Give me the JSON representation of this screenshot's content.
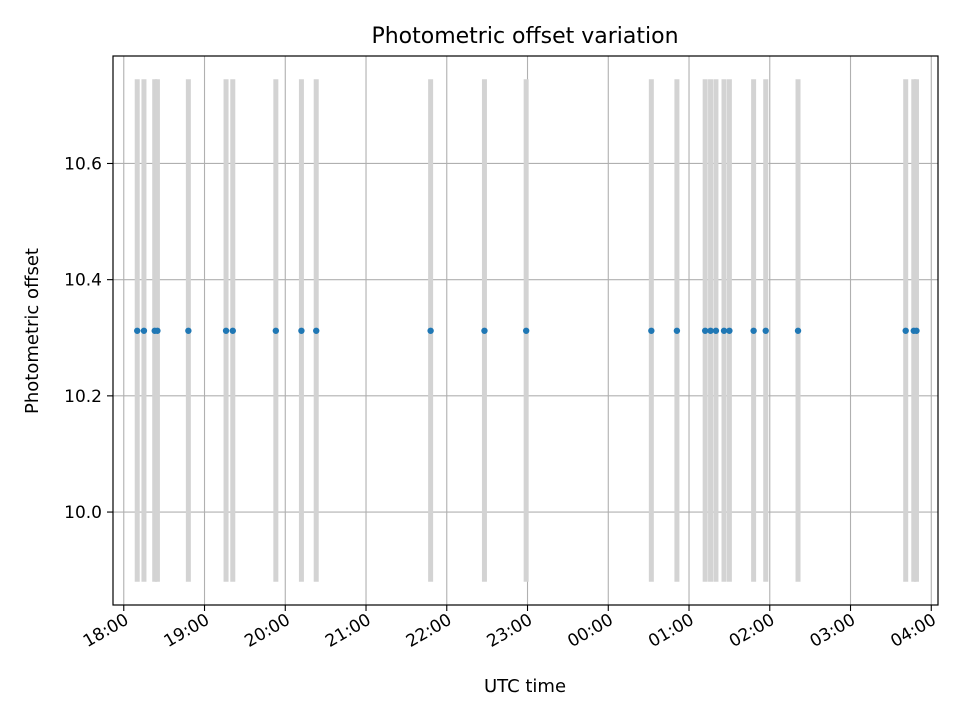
{
  "chart_data": {
    "type": "scatter",
    "title": "Photometric offset variation",
    "xlabel": "UTC time",
    "ylabel": "Photometric offset",
    "grid": true,
    "x_tick_labels": [
      "18:00",
      "19:00",
      "20:00",
      "21:00",
      "22:00",
      "23:00",
      "00:00",
      "01:00",
      "02:00",
      "03:00",
      "04:00"
    ],
    "y_tick_values": [
      10.0,
      10.2,
      10.4,
      10.6
    ],
    "y_tick_labels": [
      "10.0",
      "10.2",
      "10.4",
      "10.6"
    ],
    "xlim": [
      "17:52",
      "04:05"
    ],
    "ylim": [
      9.84,
      10.785
    ],
    "x": [
      "18:10",
      "18:15",
      "18:23",
      "18:25",
      "18:48",
      "19:16",
      "19:21",
      "19:53",
      "20:12",
      "20:23",
      "21:48",
      "22:28",
      "22:59",
      "00:32",
      "00:51",
      "01:12",
      "01:16",
      "01:20",
      "01:26",
      "01:30",
      "01:48",
      "01:57",
      "02:21",
      "03:41",
      "03:47",
      "03:49"
    ],
    "y": [
      10.312,
      10.312,
      10.312,
      10.312,
      10.312,
      10.312,
      10.312,
      10.312,
      10.312,
      10.312,
      10.312,
      10.312,
      10.312,
      10.312,
      10.312,
      10.312,
      10.312,
      10.312,
      10.312,
      10.312,
      10.312,
      10.312,
      10.312,
      10.312,
      10.312,
      10.312
    ],
    "band_ylim": [
      9.88,
      10.745
    ],
    "colors": {
      "points": "#1f77b4",
      "bands": "#d3d3d3",
      "grid": "#b0b0b0",
      "axes": "#000000"
    }
  }
}
